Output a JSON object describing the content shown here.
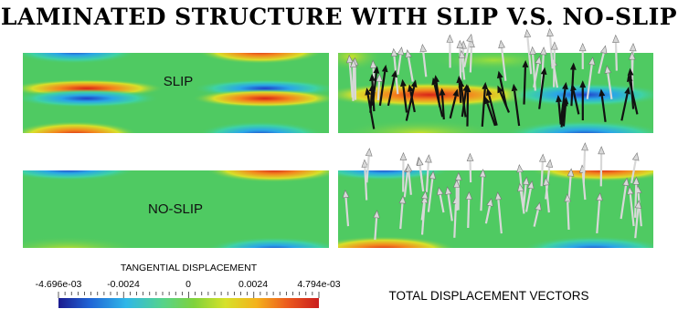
{
  "title": "LAMINATED STRUCTURE WITH SLIP V.S.  NO-SLIP",
  "panels": {
    "slip_label": "SLIP",
    "noslip_label": "NO-SLIP"
  },
  "colorbar": {
    "title": "TANGENTIAL DISPLACEMENT",
    "min_label": "-4.696e-03",
    "tick_neg": "-0.0024",
    "tick_zero": "0",
    "tick_pos": "0.0024",
    "max_label": "4.794e-03",
    "min": -0.004696,
    "max": 0.004794,
    "colors": [
      "#1c1b8f",
      "#1f64d6",
      "#2fb7e8",
      "#55d38b",
      "#7fd23c",
      "#d6e12a",
      "#f4b21c",
      "#ec5a1e",
      "#c91d1d"
    ]
  },
  "vectors_label": "TOTAL DISPLACEMENT VECTORS"
}
